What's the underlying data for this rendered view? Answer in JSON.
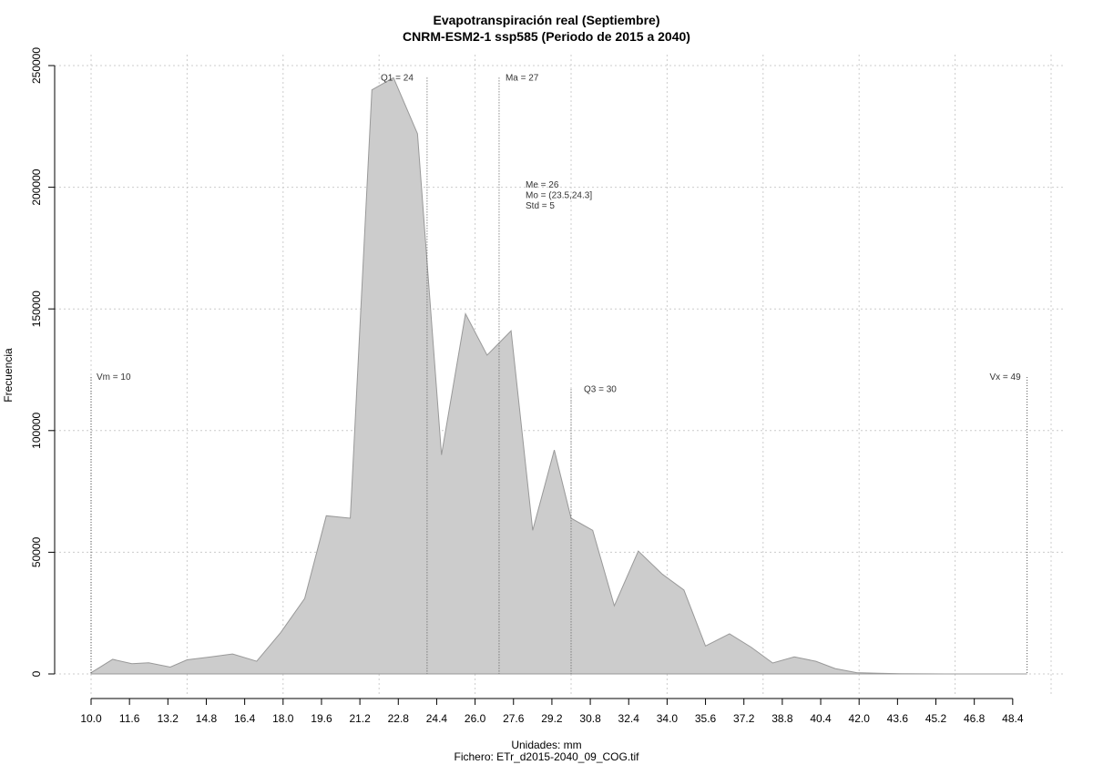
{
  "chart_data": {
    "type": "area",
    "title": "Evapotranspiración real (Septiembre)",
    "subtitle": "CNRM-ESM2-1 ssp585 (Periodo de 2015 a 2040)",
    "xlabel": "Unidades: mm",
    "caption": "Fichero: ETr_d2015-2040_09_COG.tif",
    "ylabel": "Frecuencia",
    "xlim": [
      10.0,
      49.0
    ],
    "ylim": [
      0,
      250000
    ],
    "x_ticks": [
      "10.0",
      "11.6",
      "13.2",
      "14.8",
      "16.4",
      "18.0",
      "19.6",
      "21.2",
      "22.8",
      "24.4",
      "26.0",
      "27.6",
      "29.2",
      "30.8",
      "32.4",
      "34.0",
      "35.6",
      "37.2",
      "38.8",
      "40.4",
      "42.0",
      "43.6",
      "45.2",
      "46.8",
      "48.4"
    ],
    "y_ticks": [
      "0",
      "50000",
      "100000",
      "150000",
      "200000",
      "250000"
    ],
    "grid": true,
    "fill_color": "#cccccc",
    "line_color": "#999999",
    "x": [
      10.0,
      10.9,
      11.7,
      12.4,
      13.3,
      14.0,
      15.0,
      15.9,
      16.9,
      17.9,
      18.9,
      19.8,
      20.8,
      21.7,
      22.6,
      23.6,
      24.6,
      25.6,
      26.5,
      27.5,
      28.4,
      29.3,
      30.0,
      30.9,
      31.8,
      32.8,
      33.8,
      34.7,
      35.6,
      36.6,
      37.5,
      38.4,
      39.3,
      40.2,
      41.0,
      41.9,
      42.8,
      43.7,
      44.7,
      45.6,
      46.5,
      47.4,
      48.3,
      49.0
    ],
    "y": [
      500,
      6000,
      4200,
      4600,
      2800,
      5800,
      7000,
      8200,
      5200,
      17000,
      31000,
      65000,
      64000,
      240000,
      245000,
      222000,
      90000,
      148000,
      131000,
      141000,
      59000,
      92000,
      64000,
      59000,
      28000,
      50500,
      41000,
      34500,
      11500,
      16500,
      11000,
      4500,
      7000,
      5200,
      2200,
      500,
      300,
      100,
      50,
      0,
      0,
      0,
      0,
      0
    ],
    "markers": [
      {
        "label": "Vm = 10",
        "x": 10.0,
        "top": 122000
      },
      {
        "label": "Q1 = 24",
        "x": 24.0,
        "top": 245000
      },
      {
        "label": "Ma = 27",
        "x": 27.0,
        "top": 245000
      },
      {
        "label": "Q3 = 30",
        "x": 30.0,
        "top": 117000
      },
      {
        "label": "Vx = 49",
        "x": 49.0,
        "top": 122000
      }
    ],
    "stats": [
      "Me = 26",
      "Mo = (23.5,24.3]",
      "Std = 5"
    ]
  }
}
